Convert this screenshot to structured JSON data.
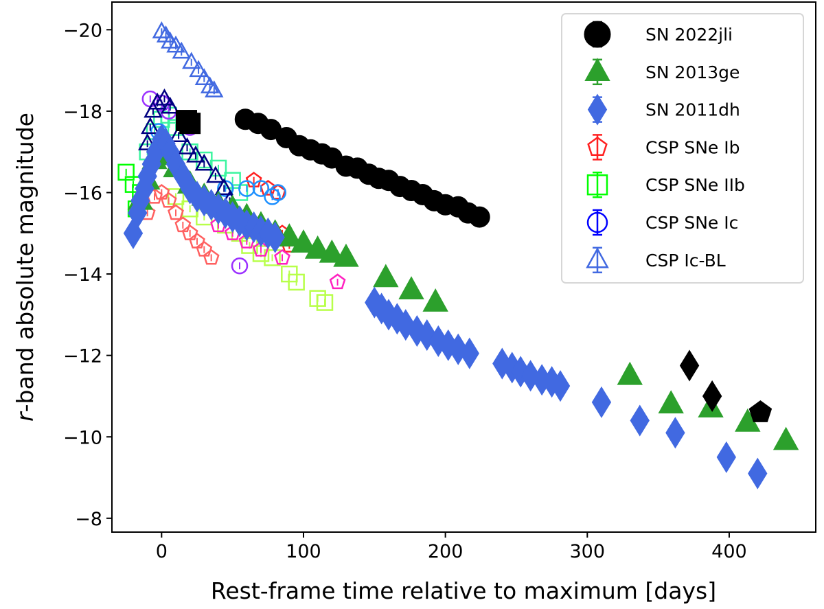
{
  "chart_data": {
    "type": "scatter",
    "xlabel": "Rest-frame time relative to maximum [days]",
    "ylabel": "r-band absolute magnitude",
    "ylabel_italic_part": "r",
    "xlim": [
      -35,
      461
    ],
    "ylim": [
      -20.68,
      -7.66
    ],
    "y_inverted": true,
    "grid": false,
    "legend_position": "top-right",
    "xticks": [
      0,
      100,
      200,
      300,
      400
    ],
    "xtick_labels": [
      "0",
      "100",
      "200",
      "300",
      "400"
    ],
    "yticks": [
      -20,
      -18,
      -16,
      -14,
      -12,
      -10,
      -8
    ],
    "ytick_labels": [
      "−20",
      "−18",
      "−16",
      "−14",
      "−12",
      "−10",
      "−8"
    ],
    "series": [
      {
        "name": "CSP SNe IIb",
        "marker": "square",
        "filled": false,
        "legend_color": "#00ff00",
        "objects": [
          {
            "color": "#00ff00",
            "points": [
              [
                -25,
                -16.5
              ],
              [
                -20,
                -16.2
              ],
              [
                -15,
                -16.0
              ],
              [
                -18,
                -15.6
              ]
            ]
          },
          {
            "color": "#3cf5a0",
            "points": [
              [
                -10,
                -17.0
              ],
              [
                -5,
                -17.5
              ],
              [
                0,
                -17.8
              ],
              [
                5,
                -17.9
              ],
              [
                10,
                -17.6
              ],
              [
                20,
                -17.0
              ],
              [
                30,
                -16.8
              ],
              [
                40,
                -16.6
              ],
              [
                50,
                -16.3
              ],
              [
                55,
                -16.0
              ]
            ]
          },
          {
            "color": "#b8ff4a",
            "points": [
              [
                10,
                -15.9
              ],
              [
                20,
                -15.6
              ],
              [
                30,
                -15.4
              ],
              [
                45,
                -15.2
              ],
              [
                55,
                -15.0
              ],
              [
                62,
                -14.7
              ],
              [
                70,
                -14.5
              ],
              [
                78,
                -14.4
              ],
              [
                90,
                -14.0
              ],
              [
                95,
                -13.8
              ],
              [
                110,
                -13.4
              ],
              [
                115,
                -13.3
              ]
            ]
          }
        ]
      },
      {
        "name": "CSP SNe Ib",
        "marker": "pentagon",
        "filled": false,
        "legend_color": "#ff2020",
        "objects": [
          {
            "color": "#ff6060",
            "points": [
              [
                -10,
                -15.5
              ],
              [
                -5,
                -15.9
              ],
              [
                0,
                -16.0
              ],
              [
                5,
                -15.8
              ],
              [
                10,
                -15.5
              ],
              [
                15,
                -15.2
              ],
              [
                20,
                -15.0
              ],
              [
                25,
                -14.8
              ],
              [
                30,
                -14.6
              ],
              [
                35,
                -14.4
              ]
            ]
          },
          {
            "color": "#ff2020",
            "points": [
              [
                65,
                -16.3
              ],
              [
                75,
                -16.1
              ],
              [
                82,
                -16.0
              ],
              [
                85,
                -15.0
              ],
              [
                90,
                -14.7
              ]
            ]
          },
          {
            "color": "#ff20c0",
            "points": [
              [
                40,
                -15.2
              ],
              [
                50,
                -15.0
              ],
              [
                60,
                -14.8
              ],
              [
                70,
                -14.6
              ],
              [
                85,
                -14.4
              ],
              [
                124,
                -13.8
              ]
            ]
          }
        ]
      },
      {
        "name": "CSP SNe Ic",
        "marker": "circle",
        "filled": false,
        "legend_color": "#0000ff",
        "objects": [
          {
            "color": "#9b30ff",
            "points": [
              [
                -8,
                -18.3
              ],
              [
                0,
                -18.2
              ],
              [
                5,
                -18.0
              ],
              [
                20,
                -17.6
              ],
              [
                55,
                -14.2
              ]
            ]
          },
          {
            "color": "#1e90ff",
            "points": [
              [
                -2,
                -17.5
              ],
              [
                45,
                -16.1
              ],
              [
                60,
                -16.1
              ],
              [
                70,
                -16.1
              ],
              [
                78,
                -15.9
              ],
              [
                82,
                -16.0
              ]
            ]
          }
        ]
      },
      {
        "name": "CSP Ic-BL",
        "marker": "triangle",
        "filled": false,
        "legend_color": "#4169e1",
        "objects": [
          {
            "color": "#4169e1",
            "points": [
              [
                0,
                -19.95
              ],
              [
                3,
                -19.85
              ],
              [
                6,
                -19.7
              ],
              [
                10,
                -19.6
              ],
              [
                14,
                -19.45
              ],
              [
                21,
                -19.2
              ],
              [
                26,
                -19.0
              ],
              [
                30,
                -18.8
              ],
              [
                34,
                -18.6
              ],
              [
                37,
                -18.5
              ]
            ]
          },
          {
            "color": "#000080",
            "points": [
              [
                -10,
                -17.2
              ],
              [
                -8,
                -17.6
              ],
              [
                -6,
                -18.0
              ],
              [
                -3,
                -18.2
              ],
              [
                2,
                -18.3
              ],
              [
                6,
                -18.1
              ],
              [
                12,
                -17.4
              ],
              [
                18,
                -17.1
              ],
              [
                24,
                -16.9
              ],
              [
                30,
                -16.7
              ],
              [
                38,
                -16.4
              ],
              [
                44,
                -16.1
              ],
              [
                48,
                -15.8
              ]
            ]
          }
        ]
      },
      {
        "name": "SN 2013ge",
        "marker": "triangle",
        "filled": true,
        "legend_color": "#2ca02c",
        "objects": [
          {
            "color": "#2ca02c",
            "points": [
              [
                -15,
                -15.8
              ],
              [
                -10,
                -16.3
              ],
              [
                -5,
                -16.8
              ],
              [
                0,
                -17.0
              ],
              [
                5,
                -16.9
              ],
              [
                10,
                -16.6
              ],
              [
                20,
                -16.2
              ],
              [
                30,
                -15.9
              ],
              [
                40,
                -15.7
              ],
              [
                50,
                -15.6
              ],
              [
                60,
                -15.4
              ],
              [
                70,
                -15.2
              ],
              [
                80,
                -15.0
              ],
              [
                90,
                -14.9
              ],
              [
                100,
                -14.75
              ],
              [
                110,
                -14.6
              ],
              [
                120,
                -14.5
              ],
              [
                130,
                -14.4
              ],
              [
                158,
                -13.9
              ],
              [
                176,
                -13.6
              ],
              [
                193,
                -13.3
              ],
              [
                330,
                -11.5
              ],
              [
                359,
                -10.8
              ],
              [
                387,
                -10.7
              ],
              [
                413,
                -10.35
              ],
              [
                440,
                -9.9
              ]
            ]
          }
        ]
      },
      {
        "name": "SN 2011dh",
        "marker": "diamond",
        "filled": true,
        "legend_color": "#4169e1",
        "objects": [
          {
            "color": "#4169e1",
            "points": [
              [
                -20,
                -15.0
              ],
              [
                -17,
                -15.5
              ],
              [
                -15,
                -15.8
              ],
              [
                -12,
                -16.1
              ],
              [
                -10,
                -16.4
              ],
              [
                -7,
                -16.7
              ],
              [
                -4,
                -17.0
              ],
              [
                0,
                -17.3
              ],
              [
                3,
                -17.2
              ],
              [
                6,
                -17.0
              ],
              [
                10,
                -16.7
              ],
              [
                15,
                -16.4
              ],
              [
                20,
                -16.1
              ],
              [
                25,
                -15.9
              ],
              [
                30,
                -15.8
              ],
              [
                35,
                -15.7
              ],
              [
                40,
                -15.6
              ],
              [
                45,
                -15.5
              ],
              [
                50,
                -15.4
              ],
              [
                55,
                -15.3
              ],
              [
                60,
                -15.2
              ],
              [
                65,
                -15.15
              ],
              [
                70,
                -15.05
              ],
              [
                75,
                -15.0
              ],
              [
                80,
                -14.9
              ],
              [
                150,
                -13.3
              ],
              [
                155,
                -13.15
              ],
              [
                160,
                -13.0
              ],
              [
                166,
                -12.9
              ],
              [
                172,
                -12.75
              ],
              [
                180,
                -12.6
              ],
              [
                187,
                -12.5
              ],
              [
                195,
                -12.35
              ],
              [
                202,
                -12.25
              ],
              [
                209,
                -12.15
              ],
              [
                217,
                -12.05
              ],
              [
                240,
                -11.8
              ],
              [
                247,
                -11.7
              ],
              [
                253,
                -11.6
              ],
              [
                260,
                -11.5
              ],
              [
                268,
                -11.4
              ],
              [
                275,
                -11.35
              ],
              [
                281,
                -11.25
              ],
              [
                310,
                -10.85
              ],
              [
                337,
                -10.4
              ],
              [
                362,
                -10.1
              ],
              [
                398,
                -9.5
              ],
              [
                420,
                -9.1
              ]
            ]
          }
        ]
      },
      {
        "name": "SN 2022jli",
        "marker": "circle",
        "filled": true,
        "legend_color": "#000000",
        "objects": [
          {
            "color": "#000000",
            "points": [
              [
                59,
                -17.8
              ],
              [
                68,
                -17.7
              ],
              [
                77,
                -17.55
              ],
              [
                88,
                -17.35
              ],
              [
                97,
                -17.15
              ],
              [
                105,
                -17.05
              ],
              [
                113,
                -16.95
              ],
              [
                120,
                -16.85
              ],
              [
                130,
                -16.65
              ],
              [
                138,
                -16.6
              ],
              [
                146,
                -16.45
              ],
              [
                153,
                -16.35
              ],
              [
                160,
                -16.3
              ],
              [
                168,
                -16.15
              ],
              [
                176,
                -16.05
              ],
              [
                184,
                -15.95
              ],
              [
                192,
                -15.8
              ],
              [
                200,
                -15.7
              ],
              [
                209,
                -15.65
              ],
              [
                216,
                -15.5
              ],
              [
                224,
                -15.4
              ]
            ]
          },
          {
            "color": "#000000",
            "marker": "square",
            "points": [
              [
                17.5,
                -17.77
              ],
              [
                20,
                -17.7
              ]
            ]
          },
          {
            "color": "#000000",
            "marker": "diamond",
            "points": [
              [
                372,
                -11.75
              ],
              [
                388,
                -11.0
              ]
            ]
          },
          {
            "color": "#000000",
            "marker": "pentagon",
            "points": [
              [
                422,
                -10.6
              ]
            ]
          }
        ]
      }
    ],
    "legend": [
      {
        "label": "SN 2022jli",
        "marker": "circle",
        "filled": true,
        "color": "#000000"
      },
      {
        "label": "SN 2013ge",
        "marker": "triangle",
        "filled": true,
        "color": "#2ca02c"
      },
      {
        "label": "SN 2011dh",
        "marker": "diamond",
        "filled": true,
        "color": "#4169e1"
      },
      {
        "label": "CSP SNe Ib",
        "marker": "pentagon",
        "filled": false,
        "color": "#ff2020"
      },
      {
        "label": "CSP SNe IIb",
        "marker": "square",
        "filled": false,
        "color": "#00ff00"
      },
      {
        "label": "CSP SNe Ic",
        "marker": "circle",
        "filled": false,
        "color": "#0000ff"
      },
      {
        "label": "CSP Ic-BL",
        "marker": "triangle",
        "filled": false,
        "color": "#4169e1"
      }
    ]
  }
}
